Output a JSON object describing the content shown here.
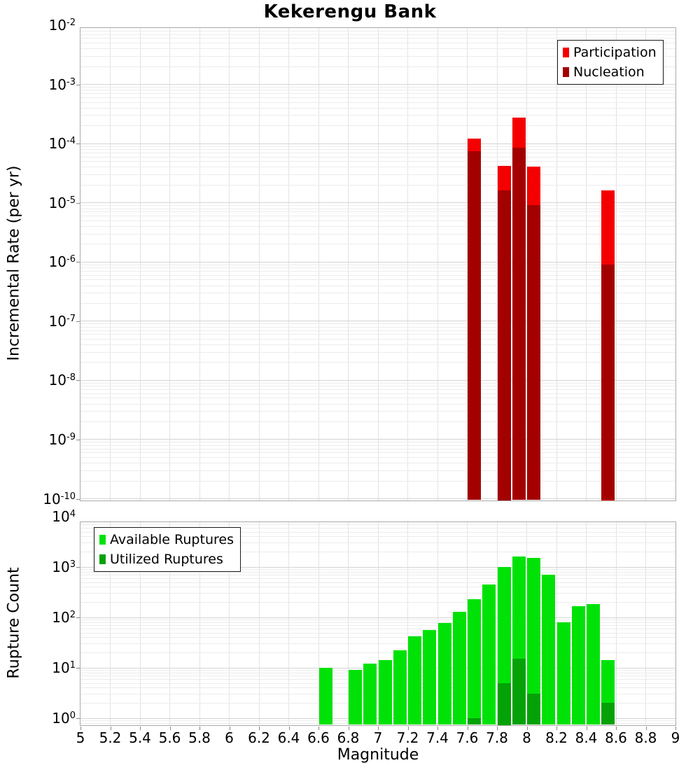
{
  "chart_data": [
    {
      "type": "bar",
      "panel": "incremental-rate",
      "title": "Kekerengu Bank",
      "ylabel": "Incremental Rate (per yr)",
      "xlabel": "",
      "yscale": "log",
      "xlim": [
        5,
        9
      ],
      "ylim": [
        1e-10,
        0.01
      ],
      "bin_width": 0.1,
      "grid": true,
      "legend_position": "top-right",
      "xticks": [
        "5",
        "5.2",
        "5.4",
        "5.6",
        "5.8",
        "6",
        "6.2",
        "6.4",
        "6.6",
        "6.8",
        "7",
        "7.2",
        "7.4",
        "7.6",
        "7.8",
        "8",
        "8.2",
        "8.4",
        "8.6",
        "8.8",
        "9"
      ],
      "ytick_labels": [
        "10^-2",
        "10^-3",
        "10^-4",
        "10^-5",
        "10^-6",
        "10^-7",
        "10^-8",
        "10^-9",
        "10^-10"
      ],
      "series": [
        {
          "name": "Participation",
          "color": "#f40000",
          "x": [
            7.65,
            7.85,
            7.95,
            8.05,
            8.55
          ],
          "values": [
            0.00012,
            4.2e-05,
            0.00027,
            4e-05,
            1.6e-05
          ]
        },
        {
          "name": "Nucleation",
          "color": "#a30000",
          "x": [
            7.65,
            7.85,
            7.95,
            8.05,
            8.55
          ],
          "values": [
            7.3e-05,
            1.6e-05,
            8.5e-05,
            9e-06,
            9e-07
          ]
        }
      ]
    },
    {
      "type": "bar",
      "panel": "rupture-count",
      "title": "",
      "ylabel": "Rupture Count",
      "xlabel": "Magnitude",
      "yscale": "log",
      "xlim": [
        5,
        9
      ],
      "ylim": [
        1,
        10000
      ],
      "bin_width": 0.1,
      "grid": true,
      "legend_position": "top-left",
      "xticks": [
        "5",
        "5.2",
        "5.4",
        "5.6",
        "5.8",
        "6",
        "6.2",
        "6.4",
        "6.6",
        "6.8",
        "7",
        "7.2",
        "7.4",
        "7.6",
        "7.8",
        "8",
        "8.2",
        "8.4",
        "8.6",
        "8.8",
        "9"
      ],
      "ytick_labels": [
        "10^4",
        "10^3",
        "10^2",
        "10^1",
        "10^0"
      ],
      "series": [
        {
          "name": "Available Ruptures",
          "color": "#00e207",
          "x": [
            6.65,
            6.85,
            6.95,
            7.05,
            7.15,
            7.25,
            7.35,
            7.45,
            7.55,
            7.65,
            7.75,
            7.85,
            7.95,
            8.05,
            8.15,
            8.25,
            8.35,
            8.45,
            8.55
          ],
          "values": [
            10,
            9,
            12,
            14,
            22,
            42,
            56,
            78,
            130,
            225,
            450,
            1000,
            1600,
            1500,
            700,
            80,
            165,
            185,
            14
          ]
        },
        {
          "name": "Utilized Ruptures",
          "color": "#04a207",
          "x": [
            7.65,
            7.85,
            7.95,
            8.05,
            8.55
          ],
          "values": [
            1,
            5,
            15,
            3,
            2
          ]
        }
      ]
    }
  ]
}
